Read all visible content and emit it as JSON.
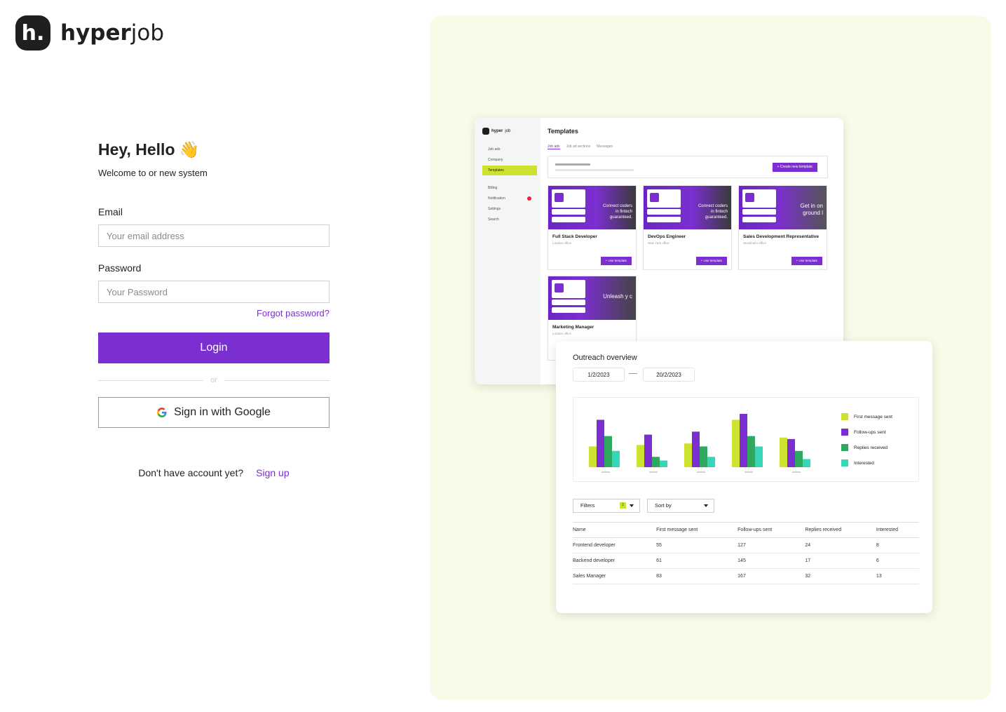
{
  "brand": {
    "mark": "h.",
    "name_bold": "hyper",
    "name_light": "job"
  },
  "login": {
    "greeting": "Hey, Hello",
    "wave": "👋",
    "subtitle": "Welcome to or new system",
    "email_label": "Email",
    "email_placeholder": "Your email address",
    "password_label": "Password",
    "password_placeholder": "Your Password",
    "forgot": "Forgot password?",
    "login_button": "Login",
    "or": "or",
    "google_button": "Sign in with Google",
    "no_account": "Don't have account yet?",
    "signup": "Sign up"
  },
  "preview_templates": {
    "brand_bold": "hyper",
    "brand_light": "job",
    "nav": [
      {
        "label": "Job ads",
        "icon": "list-icon",
        "active": false
      },
      {
        "label": "Company",
        "icon": "folder-icon",
        "active": false
      },
      {
        "label": "Templates",
        "icon": "folder-icon",
        "active": true
      },
      {
        "label": "Billing",
        "icon": "billing-icon",
        "active": false
      },
      {
        "label": "Notification",
        "icon": "bell-icon",
        "active": false,
        "badge": true
      },
      {
        "label": "Settings",
        "icon": "gear-icon",
        "active": false
      },
      {
        "label": "Search",
        "icon": "search-icon",
        "active": false
      }
    ],
    "title": "Templates",
    "tabs": [
      "Job ads",
      "Job ad sections",
      "Messages"
    ],
    "create_button": "+ Create new template",
    "cards": [
      {
        "title": "Full Stack Developer",
        "location": "London office",
        "tag": "Connect coders in fintech guaranteed.",
        "button": "+ Use template"
      },
      {
        "title": "DevOps Engineer",
        "location": "New York office",
        "tag": "Connect coders in fintech guaranteed.",
        "button": "+ Use template"
      },
      {
        "title": "Sales Development Representative",
        "location": "Stockholm office",
        "tag": "Get in on ground l",
        "button": "+ Use template"
      },
      {
        "title": "Marketing Manager",
        "location": "London office",
        "tag": "Unleash y c",
        "button": ""
      }
    ]
  },
  "preview_outreach": {
    "title": "Outreach overview",
    "date_from": "1/2/2023",
    "date_to": "20/2/2023",
    "filters": "Filters",
    "filters_count": "1",
    "sort": "Sort by",
    "colors": {
      "first": "#cde22f",
      "followups": "#7b2fd0",
      "replies": "#2fa860",
      "interested": "#38d6b8"
    },
    "chart_data": {
      "type": "bar",
      "categories": [
        "",
        "",
        "",
        "",
        ""
      ],
      "series": [
        {
          "name": "First message sent",
          "values": [
            28,
            30,
            32,
            64,
            40
          ]
        },
        {
          "name": "Follow-ups sent",
          "values": [
            64,
            44,
            48,
            72,
            38
          ]
        },
        {
          "name": "Replies received",
          "values": [
            42,
            14,
            28,
            42,
            22
          ]
        },
        {
          "name": "Interested",
          "values": [
            22,
            9,
            14,
            28,
            11
          ]
        }
      ]
    },
    "table": {
      "headers": [
        "Name",
        "First message sent",
        "Follow-ups sent",
        "Replies received",
        "Interested"
      ],
      "rows": [
        [
          "Frontend developer",
          "55",
          "127",
          "24",
          "8"
        ],
        [
          "Backend developer",
          "61",
          "145",
          "17",
          "6"
        ],
        [
          "Sales Manager",
          "83",
          "167",
          "32",
          "13"
        ]
      ]
    }
  }
}
